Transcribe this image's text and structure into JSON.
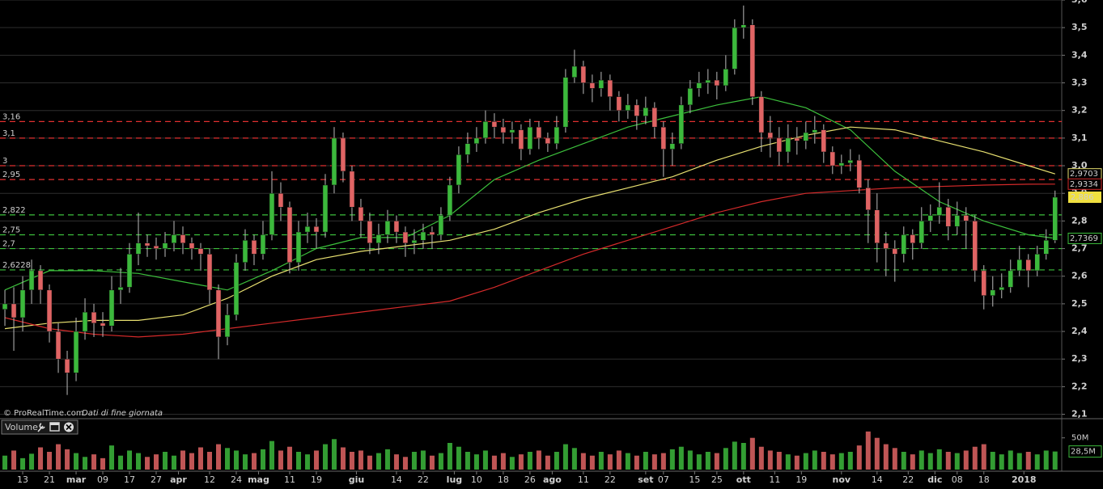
{
  "chart_data": {
    "type": "candlestick",
    "source": "© ProRealTime.com",
    "note": "Dati di fine giornata",
    "up_color": "#3cb93c",
    "down_color": "#e06464",
    "grid": true,
    "xlim": [
      -1.1,
      237.5
    ],
    "ylim": [
      2.09,
      3.6
    ],
    "yticks": [
      {
        "value": 2.1,
        "label": "2,1"
      },
      {
        "value": 2.2,
        "label": "2,2"
      },
      {
        "value": 2.3,
        "label": "2,3"
      },
      {
        "value": 2.4,
        "label": "2,4"
      },
      {
        "value": 2.5,
        "label": "2,5"
      },
      {
        "value": 2.6,
        "label": "2,6"
      },
      {
        "value": 2.7,
        "label": "2,7"
      },
      {
        "value": 2.8,
        "label": "2,8"
      },
      {
        "value": 2.9,
        "label": "2,9"
      },
      {
        "value": 3.0,
        "label": "3,0"
      },
      {
        "value": 3.1,
        "label": "3,1"
      },
      {
        "value": 3.2,
        "label": "3,2"
      },
      {
        "value": 3.3,
        "label": "3,3"
      },
      {
        "value": 3.4,
        "label": "3,4"
      },
      {
        "value": 3.5,
        "label": "3,5"
      },
      {
        "value": 3.6,
        "label": "3,6"
      }
    ],
    "xticks": [
      {
        "value": 4,
        "label": "13"
      },
      {
        "value": 10,
        "label": "21"
      },
      {
        "value": 16,
        "label": "mar"
      },
      {
        "value": 22,
        "label": "09"
      },
      {
        "value": 28,
        "label": "17"
      },
      {
        "value": 34,
        "label": "27"
      },
      {
        "value": 39,
        "label": "apr"
      },
      {
        "value": 46,
        "label": "12"
      },
      {
        "value": 52,
        "label": "24"
      },
      {
        "value": 57,
        "label": "mag"
      },
      {
        "value": 64,
        "label": "11"
      },
      {
        "value": 70,
        "label": "19"
      },
      {
        "value": 79,
        "label": "giu"
      },
      {
        "value": 88,
        "label": "14"
      },
      {
        "value": 94,
        "label": "22"
      },
      {
        "value": 101,
        "label": "lug"
      },
      {
        "value": 106,
        "label": "10"
      },
      {
        "value": 112,
        "label": "18"
      },
      {
        "value": 118,
        "label": "26"
      },
      {
        "value": 123,
        "label": "ago"
      },
      {
        "value": 130,
        "label": "11"
      },
      {
        "value": 136,
        "label": "22"
      },
      {
        "value": 144,
        "label": "set"
      },
      {
        "value": 148,
        "label": "07"
      },
      {
        "value": 155,
        "label": "15"
      },
      {
        "value": 160,
        "label": "25"
      },
      {
        "value": 166,
        "label": "ott"
      },
      {
        "value": 173,
        "label": "11"
      },
      {
        "value": 179,
        "label": "19"
      },
      {
        "value": 188,
        "label": "nov"
      },
      {
        "value": 196,
        "label": "14"
      },
      {
        "value": 203,
        "label": "22"
      },
      {
        "value": 209,
        "label": "dic"
      },
      {
        "value": 214,
        "label": "08"
      },
      {
        "value": 220,
        "label": "18"
      },
      {
        "value": 229,
        "label": "2018"
      }
    ],
    "x": [
      0,
      2,
      4,
      6,
      8,
      10,
      12,
      14,
      16,
      18,
      20,
      22,
      24,
      26,
      28,
      30,
      32,
      34,
      36,
      38,
      40,
      42,
      44,
      46,
      48,
      50,
      52,
      54,
      56,
      58,
      60,
      62,
      64,
      66,
      68,
      70,
      72,
      74,
      76,
      78,
      80,
      82,
      84,
      86,
      88,
      90,
      92,
      94,
      96,
      98,
      100,
      102,
      104,
      106,
      108,
      110,
      112,
      114,
      116,
      118,
      120,
      122,
      124,
      126,
      128,
      130,
      132,
      134,
      136,
      138,
      140,
      142,
      144,
      146,
      148,
      150,
      152,
      154,
      156,
      158,
      160,
      162,
      164,
      166,
      168,
      170,
      172,
      174,
      176,
      178,
      180,
      182,
      184,
      186,
      188,
      190,
      192,
      194,
      196,
      198,
      200,
      202,
      204,
      206,
      208,
      210,
      212,
      214,
      216,
      218,
      220,
      222,
      224,
      226,
      228,
      230,
      232,
      234,
      236
    ],
    "candles": [
      [
        2.48,
        2.55,
        2.42,
        2.5
      ],
      [
        2.5,
        2.56,
        2.33,
        2.45
      ],
      [
        2.45,
        2.6,
        2.4,
        2.55
      ],
      [
        2.55,
        2.66,
        2.5,
        2.62
      ],
      [
        2.62,
        2.64,
        2.5,
        2.55
      ],
      [
        2.55,
        2.57,
        2.36,
        2.4
      ],
      [
        2.4,
        2.43,
        2.25,
        2.3
      ],
      [
        2.3,
        2.33,
        2.17,
        2.25
      ],
      [
        2.25,
        2.45,
        2.22,
        2.4
      ],
      [
        2.4,
        2.52,
        2.37,
        2.47
      ],
      [
        2.47,
        2.5,
        2.38,
        2.43
      ],
      [
        2.43,
        2.47,
        2.38,
        2.42
      ],
      [
        2.42,
        2.6,
        2.4,
        2.55
      ],
      [
        2.55,
        2.63,
        2.5,
        2.56
      ],
      [
        2.56,
        2.72,
        2.54,
        2.68
      ],
      [
        2.68,
        2.83,
        2.64,
        2.72
      ],
      [
        2.72,
        2.75,
        2.67,
        2.71
      ],
      [
        2.71,
        2.74,
        2.66,
        2.7
      ],
      [
        2.7,
        2.76,
        2.67,
        2.72
      ],
      [
        2.72,
        2.8,
        2.69,
        2.75
      ],
      [
        2.75,
        2.78,
        2.68,
        2.72
      ],
      [
        2.72,
        2.74,
        2.66,
        2.7
      ],
      [
        2.7,
        2.72,
        2.62,
        2.68
      ],
      [
        2.68,
        2.7,
        2.5,
        2.55
      ],
      [
        2.55,
        2.57,
        2.3,
        2.38
      ],
      [
        2.38,
        2.5,
        2.35,
        2.46
      ],
      [
        2.46,
        2.68,
        2.44,
        2.65
      ],
      [
        2.65,
        2.77,
        2.62,
        2.73
      ],
      [
        2.73,
        2.75,
        2.64,
        2.68
      ],
      [
        2.68,
        2.8,
        2.66,
        2.75
      ],
      [
        2.75,
        2.98,
        2.73,
        2.9
      ],
      [
        2.9,
        2.94,
        2.8,
        2.85
      ],
      [
        2.85,
        2.87,
        2.61,
        2.65
      ],
      [
        2.65,
        2.8,
        2.62,
        2.76
      ],
      [
        2.76,
        2.83,
        2.72,
        2.78
      ],
      [
        2.78,
        2.81,
        2.7,
        2.76
      ],
      [
        2.76,
        2.97,
        2.74,
        2.93
      ],
      [
        2.93,
        3.14,
        2.9,
        3.1
      ],
      [
        3.1,
        3.12,
        2.94,
        2.98
      ],
      [
        2.98,
        3.0,
        2.8,
        2.85
      ],
      [
        2.85,
        2.88,
        2.74,
        2.8
      ],
      [
        2.8,
        2.83,
        2.68,
        2.72
      ],
      [
        2.72,
        2.79,
        2.68,
        2.75
      ],
      [
        2.75,
        2.84,
        2.72,
        2.8
      ],
      [
        2.8,
        2.82,
        2.72,
        2.76
      ],
      [
        2.76,
        2.78,
        2.67,
        2.72
      ],
      [
        2.72,
        2.77,
        2.68,
        2.73
      ],
      [
        2.73,
        2.79,
        2.7,
        2.76
      ],
      [
        2.76,
        2.78,
        2.7,
        2.75
      ],
      [
        2.75,
        2.85,
        2.73,
        2.82
      ],
      [
        2.82,
        2.96,
        2.8,
        2.93
      ],
      [
        2.93,
        3.07,
        2.9,
        3.04
      ],
      [
        3.04,
        3.12,
        3.01,
        3.08
      ],
      [
        3.08,
        3.14,
        3.05,
        3.1
      ],
      [
        3.1,
        3.2,
        3.08,
        3.16
      ],
      [
        3.16,
        3.19,
        3.1,
        3.14
      ],
      [
        3.14,
        3.17,
        3.08,
        3.12
      ],
      [
        3.12,
        3.16,
        3.08,
        3.13
      ],
      [
        3.13,
        3.15,
        3.02,
        3.06
      ],
      [
        3.06,
        3.17,
        3.04,
        3.14
      ],
      [
        3.14,
        3.16,
        3.06,
        3.1
      ],
      [
        3.1,
        3.12,
        3.05,
        3.08
      ],
      [
        3.08,
        3.18,
        3.06,
        3.14
      ],
      [
        3.14,
        3.35,
        3.12,
        3.32
      ],
      [
        3.32,
        3.42,
        3.3,
        3.36
      ],
      [
        3.36,
        3.38,
        3.26,
        3.3
      ],
      [
        3.3,
        3.33,
        3.23,
        3.28
      ],
      [
        3.28,
        3.34,
        3.25,
        3.31
      ],
      [
        3.31,
        3.33,
        3.2,
        3.25
      ],
      [
        3.25,
        3.27,
        3.16,
        3.2
      ],
      [
        3.2,
        3.26,
        3.17,
        3.22
      ],
      [
        3.22,
        3.24,
        3.13,
        3.18
      ],
      [
        3.18,
        3.25,
        3.15,
        3.21
      ],
      [
        3.21,
        3.23,
        3.1,
        3.14
      ],
      [
        3.14,
        3.16,
        2.96,
        3.06
      ],
      [
        3.06,
        3.12,
        3.0,
        3.08
      ],
      [
        3.08,
        3.25,
        3.06,
        3.22
      ],
      [
        3.22,
        3.31,
        3.19,
        3.28
      ],
      [
        3.28,
        3.34,
        3.25,
        3.3
      ],
      [
        3.3,
        3.35,
        3.26,
        3.31
      ],
      [
        3.31,
        3.34,
        3.24,
        3.29
      ],
      [
        3.29,
        3.4,
        3.27,
        3.35
      ],
      [
        3.35,
        3.53,
        3.33,
        3.5
      ],
      [
        3.5,
        3.58,
        3.46,
        3.51
      ],
      [
        3.51,
        3.53,
        3.22,
        3.25
      ],
      [
        3.25,
        3.27,
        3.05,
        3.12
      ],
      [
        3.12,
        3.18,
        3.03,
        3.1
      ],
      [
        3.1,
        3.14,
        3.0,
        3.05
      ],
      [
        3.05,
        3.15,
        3.01,
        3.1
      ],
      [
        3.1,
        3.14,
        3.04,
        3.09
      ],
      [
        3.09,
        3.16,
        3.06,
        3.12
      ],
      [
        3.12,
        3.18,
        3.08,
        3.13
      ],
      [
        3.13,
        3.15,
        3.01,
        3.05
      ],
      [
        3.05,
        3.07,
        2.97,
        3.0
      ],
      [
        3.0,
        3.04,
        2.97,
        3.01
      ],
      [
        3.01,
        3.06,
        2.98,
        3.02
      ],
      [
        3.02,
        3.04,
        2.9,
        2.92
      ],
      [
        2.92,
        2.95,
        2.72,
        2.84
      ],
      [
        2.84,
        2.9,
        2.65,
        2.72
      ],
      [
        2.72,
        2.76,
        2.6,
        2.7
      ],
      [
        2.7,
        2.73,
        2.58,
        2.68
      ],
      [
        2.68,
        2.78,
        2.65,
        2.75
      ],
      [
        2.75,
        2.77,
        2.66,
        2.72
      ],
      [
        2.72,
        2.85,
        2.7,
        2.8
      ],
      [
        2.8,
        2.86,
        2.76,
        2.82
      ],
      [
        2.82,
        2.94,
        2.79,
        2.85
      ],
      [
        2.85,
        2.88,
        2.73,
        2.78
      ],
      [
        2.78,
        2.87,
        2.75,
        2.82
      ],
      [
        2.82,
        2.85,
        2.7,
        2.8
      ],
      [
        2.8,
        2.82,
        2.58,
        2.62
      ],
      [
        2.62,
        2.64,
        2.48,
        2.53
      ],
      [
        2.53,
        2.6,
        2.49,
        2.55
      ],
      [
        2.55,
        2.61,
        2.52,
        2.56
      ],
      [
        2.56,
        2.66,
        2.54,
        2.62
      ],
      [
        2.62,
        2.71,
        2.6,
        2.66
      ],
      [
        2.66,
        2.68,
        2.56,
        2.62
      ],
      [
        2.62,
        2.71,
        2.6,
        2.68
      ],
      [
        2.68,
        2.77,
        2.66,
        2.73
      ],
      [
        2.73,
        2.91,
        2.72,
        2.886
      ]
    ],
    "last_price": {
      "value": 2.886,
      "label": "2,886"
    },
    "moving_averages": [
      {
        "color": "#3cc03c",
        "x": [
          0,
          10,
          20,
          30,
          40,
          50,
          60,
          70,
          80,
          90,
          100,
          110,
          120,
          130,
          140,
          150,
          160,
          170,
          180,
          190,
          200,
          210,
          220,
          230,
          236
        ],
        "values": [
          2.55,
          2.62,
          2.62,
          2.61,
          2.58,
          2.55,
          2.62,
          2.7,
          2.74,
          2.74,
          2.82,
          2.95,
          3.02,
          3.08,
          3.14,
          3.18,
          3.22,
          3.25,
          3.21,
          3.13,
          2.98,
          2.87,
          2.8,
          2.75,
          2.7369
        ],
        "end_label": {
          "value": 2.7369,
          "label": "2,7369"
        }
      },
      {
        "color": "#e8e070",
        "x": [
          0,
          10,
          20,
          30,
          40,
          50,
          60,
          70,
          80,
          90,
          100,
          110,
          120,
          130,
          140,
          150,
          160,
          170,
          180,
          190,
          200,
          210,
          220,
          230,
          236
        ],
        "values": [
          2.41,
          2.43,
          2.44,
          2.44,
          2.46,
          2.52,
          2.6,
          2.66,
          2.69,
          2.71,
          2.73,
          2.77,
          2.83,
          2.88,
          2.92,
          2.96,
          3.02,
          3.07,
          3.11,
          3.14,
          3.13,
          3.09,
          3.05,
          3.0,
          2.9703
        ],
        "end_label": {
          "value": 2.9703,
          "label": "2,9703"
        }
      },
      {
        "color": "#d42a2a",
        "x": [
          0,
          10,
          20,
          30,
          40,
          50,
          60,
          70,
          80,
          90,
          100,
          110,
          120,
          130,
          140,
          150,
          160,
          170,
          180,
          190,
          200,
          210,
          220,
          230,
          236
        ],
        "values": [
          2.45,
          2.41,
          2.39,
          2.38,
          2.39,
          2.41,
          2.43,
          2.45,
          2.47,
          2.49,
          2.51,
          2.56,
          2.62,
          2.68,
          2.73,
          2.78,
          2.83,
          2.87,
          2.9,
          2.91,
          2.92,
          2.925,
          2.93,
          2.933,
          2.9334
        ],
        "end_label": {
          "value": 2.9334,
          "label": "2,9334"
        }
      }
    ],
    "levels": [
      {
        "value": 3.16,
        "label": "3,16",
        "color": "#e03030"
      },
      {
        "value": 3.1,
        "label": "3,1",
        "color": "#e03030"
      },
      {
        "value": 3.0,
        "label": "3",
        "color": "#e03030"
      },
      {
        "value": 2.95,
        "label": "2,95",
        "color": "#e03030"
      },
      {
        "value": 2.822,
        "label": "2,822",
        "color": "#3cc03c"
      },
      {
        "value": 2.75,
        "label": "2,75",
        "color": "#3cc03c"
      },
      {
        "value": 2.7,
        "label": "2,7",
        "color": "#3cc03c"
      },
      {
        "value": 2.6228,
        "label": "2,6228",
        "color": "#3cc03c"
      }
    ],
    "volume": {
      "label": "Volume",
      "ylim": [
        0,
        56
      ],
      "yticks": [
        {
          "value": 50,
          "label": "50M"
        }
      ],
      "last": {
        "value": 28.5,
        "label": "28,5M"
      },
      "values": [
        22,
        30,
        18,
        25,
        35,
        28,
        40,
        32,
        26,
        20,
        24,
        18,
        38,
        22,
        30,
        26,
        20,
        24,
        28,
        22,
        30,
        26,
        35,
        28,
        40,
        34,
        30,
        24,
        26,
        32,
        45,
        30,
        36,
        28,
        24,
        30,
        40,
        48,
        35,
        28,
        30,
        22,
        26,
        32,
        24,
        20,
        28,
        30,
        22,
        26,
        42,
        36,
        28,
        24,
        30,
        22,
        26,
        20,
        24,
        28,
        30,
        22,
        28,
        40,
        34,
        26,
        22,
        28,
        24,
        30,
        26,
        22,
        28,
        24,
        26,
        32,
        36,
        30,
        24,
        28,
        26,
        34,
        44,
        42,
        50,
        36,
        30,
        28,
        24,
        22,
        26,
        30,
        28,
        24,
        26,
        28,
        38,
        60,
        50,
        40,
        34,
        28,
        24,
        30,
        26,
        32,
        28,
        26,
        30,
        36,
        40,
        28,
        24,
        30,
        26,
        28,
        24,
        30,
        28.5
      ]
    }
  }
}
